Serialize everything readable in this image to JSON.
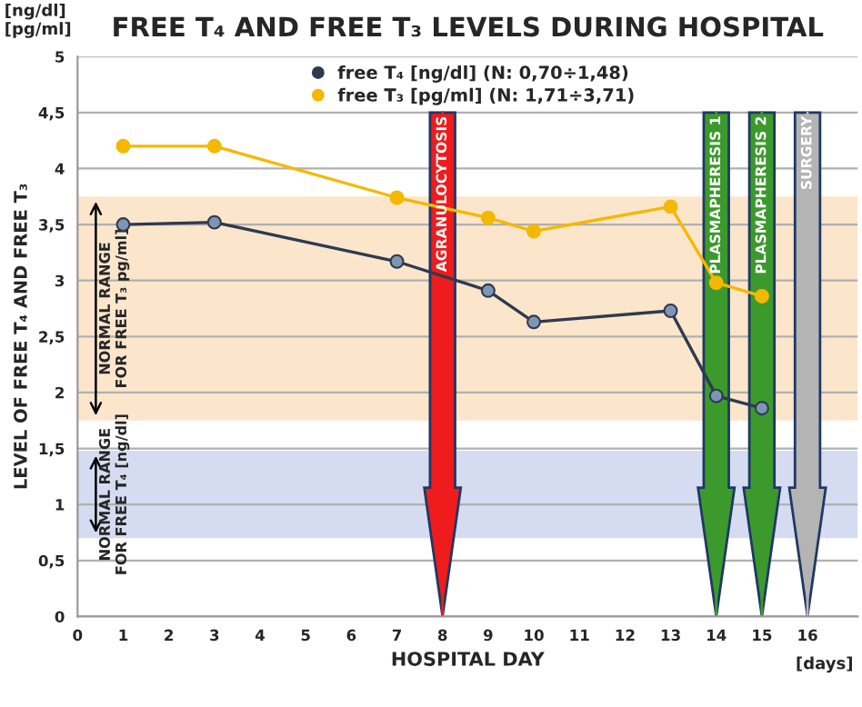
{
  "chart_data": {
    "type": "line",
    "title": "FREE T₄ AND FREE T₃ LEVELS DURING HOSPITAL",
    "xlabel": "HOSPITAL DAY",
    "ylabel": "LEVEL OF FREE T₄ AND FREE T₃",
    "annotations": [
      "[ng/dl]\n[pg/ml]",
      "[days]"
    ],
    "series": [
      {
        "name": "free T₄ [ng/dl] (N: 0,70÷1,48)",
        "color": "#2e3a4f",
        "x": [
          1,
          3,
          7,
          9,
          10,
          13,
          14,
          15
        ],
        "values": [
          3.5,
          3.52,
          3.17,
          2.91,
          2.63,
          2.73,
          1.97,
          1.86
        ]
      },
      {
        "name": "free T₃ [pg/ml] (N: 1,71÷3,71)",
        "color": "#f5b800",
        "x": [
          1,
          3,
          7,
          9,
          10,
          13,
          14,
          15
        ],
        "values": [
          4.2,
          4.2,
          3.74,
          3.56,
          3.44,
          3.66,
          2.98,
          2.86
        ]
      }
    ],
    "marker": "circle",
    "line_style": "solid",
    "xlim": [
      0,
      17.1
    ],
    "ylim": [
      0,
      5
    ],
    "xticks": [
      0,
      1,
      2,
      3,
      4,
      5,
      6,
      7,
      8,
      9,
      10,
      11,
      12,
      13,
      14,
      15,
      16
    ],
    "yticks": [
      0,
      {
        "value": 0.5,
        "label": "0,5"
      },
      1,
      {
        "value": 1.5,
        "label": "1,5"
      },
      2,
      {
        "value": 2.5,
        "label": "2,5"
      },
      3,
      {
        "value": 3.5,
        "label": "3,5"
      },
      4,
      {
        "value": 4.5,
        "label": "4,5"
      },
      5
    ],
    "grid": "y",
    "legend": "top",
    "bands": [
      {
        "axis": "y",
        "from": 1.75,
        "to": 3.75,
        "label": "NORMAL RANGE\nFOR FREE T₃ pg/ml]",
        "color": "#fbe6cc"
      },
      {
        "axis": "y",
        "from": 0.7,
        "to": 1.48,
        "label": "NORMAL RANGE\nFOR FREE T₄ [ng/dl]",
        "color": "#d5dcf2"
      }
    ],
    "ref_lines": [
      {
        "axis": "x",
        "value": 8,
        "label": "AGRANULOCYTOSIS",
        "color": "#ee1c1c"
      },
      {
        "axis": "x",
        "value": 14,
        "label": "PLASMAPHERESIS 1",
        "color": "#3c9a2c"
      },
      {
        "axis": "x",
        "value": 15,
        "label": "PLASMAPHERESIS 2",
        "color": "#3c9a2c"
      },
      {
        "axis": "x",
        "value": 16,
        "label": "SURGERY",
        "color": "#b4b4b4"
      }
    ]
  }
}
